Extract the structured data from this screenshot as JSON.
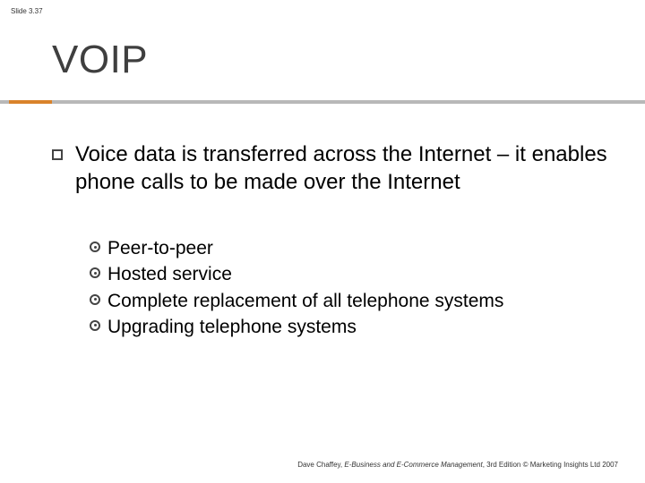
{
  "slide": {
    "number_label": "Slide 3.37",
    "title": "VOIP",
    "accent_color": "#d9822b",
    "divider_color": "#b8b8b8",
    "title_color": "#3f3f3f",
    "title_fontsize": 44
  },
  "content": {
    "main_bullet": "Voice data is transferred across the Internet – it enables phone calls to be made over the Internet",
    "main_fontsize": 24,
    "sub_bullets": [
      "Peer-to-peer",
      "Hosted service",
      "Complete replacement of all telephone systems",
      "Upgrading telephone systems"
    ],
    "sub_fontsize": 21
  },
  "footer": {
    "author": "Dave Chaffey, ",
    "book_title": "E-Business and E-Commerce Management",
    "edition_suffix": ", 3rd Edition © Marketing Insights Ltd 2007"
  }
}
